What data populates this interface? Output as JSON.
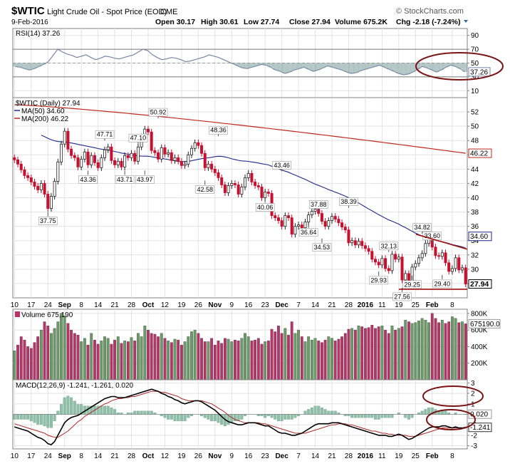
{
  "header": {
    "symbol": "$WTIC",
    "name": "Light Crude Oil - Spot Price (EOD)",
    "exchange": "CME",
    "date": "9-Feb-2016",
    "quote_labels": [
      "Open",
      "High",
      "Low",
      "Close",
      "Volume",
      "Chg"
    ],
    "quote_values": [
      "30.17",
      "30.61",
      "27.74",
      "27.94",
      "675.2K",
      "-2.18 (-7.24%)"
    ],
    "watermark": "© StockCharts.com"
  },
  "colors": {
    "up": "#5b8c5a",
    "down": "#c8102e",
    "ma50": "#1f2a8a",
    "ma200": "#c0281e",
    "rsi": "#7a86a8",
    "rsi_fill": "#7a9c9a",
    "volume_up": "#6a9a66",
    "volume_down": "#b8336a",
    "macd": "#000000",
    "signal": "#b0292a",
    "histogram": "#8fbfa8",
    "circle": "#7a1414"
  },
  "chart_data": [
    {
      "type": "line",
      "panel": "RSI",
      "legend": "RSI(14) 37.26",
      "last_value": "37.26",
      "ylim": [
        0,
        100
      ],
      "yticks": [
        10,
        30,
        50,
        70,
        90
      ],
      "levels": [
        30,
        70
      ],
      "values": [
        45,
        44,
        42,
        40,
        42,
        45,
        48,
        52,
        61,
        70,
        66,
        63,
        61,
        58,
        60,
        62,
        58,
        55,
        57,
        60,
        59,
        57,
        56,
        58,
        60,
        62,
        66,
        70,
        68,
        62,
        58,
        55,
        56,
        58,
        57,
        55,
        52,
        53,
        55,
        57,
        59,
        62,
        60,
        58,
        55,
        52,
        49,
        46,
        43,
        42,
        44,
        46,
        48,
        47,
        44,
        40,
        38,
        35,
        37,
        40,
        42,
        44,
        41,
        38,
        40,
        43,
        46,
        44,
        42,
        40,
        37,
        35,
        36,
        39,
        41,
        43,
        45,
        47,
        44,
        41,
        38,
        35,
        33,
        34,
        37,
        41,
        45,
        43,
        40,
        37,
        40,
        44,
        47,
        45,
        42,
        37.26
      ]
    },
    {
      "type": "candlestick",
      "panel": "Price",
      "legend": [
        "$WTIC (Daily) 27.94",
        "MA(50) 34.60",
        "MA(200) 46.22"
      ],
      "ylim": [
        26,
        54
      ],
      "yticks": [
        28,
        30,
        32,
        34,
        36,
        38,
        40,
        42,
        44,
        46,
        48,
        50,
        52
      ],
      "last_close": "27.94",
      "ma50_last": "34.60",
      "ma200_last": "46.22",
      "x_labels": [
        "10",
        "17",
        "24",
        "Sep",
        "8",
        "14",
        "21",
        "28",
        "Oct",
        "12",
        "19",
        "26",
        "Nov",
        "9",
        "16",
        "23",
        "Dec",
        "7",
        "14",
        "21",
        "28",
        "2016",
        "11",
        "19",
        "25",
        "Feb",
        "8"
      ],
      "close": [
        45.3,
        44.7,
        43.9,
        43.1,
        42.8,
        42.2,
        41.6,
        41.1,
        42.0,
        40.5,
        38.5,
        40.2,
        42.3,
        45.0,
        47.5,
        49.3,
        46.8,
        45.9,
        45.6,
        44.3,
        45.4,
        46.4,
        44.6,
        45.9,
        44.9,
        44.2,
        45.6,
        46.7,
        47.1,
        45.2,
        44.6,
        45.1,
        44.3,
        45.9,
        45.6,
        46.2,
        45.1,
        47.1,
        48.5,
        49.6,
        49.2,
        46.6,
        46.3,
        45.4,
        47.0,
        46.1,
        46.3,
        45.2,
        45.6,
        45.1,
        44.5,
        44.7,
        46.0,
        46.9,
        47.7,
        47.3,
        46.2,
        44.2,
        44.7,
        44.0,
        43.5,
        42.8,
        41.8,
        40.7,
        41.7,
        42.0,
        41.8,
        40.5,
        41.5,
        42.8,
        43.4,
        42.2,
        41.7,
        41.5,
        40.0,
        40.8,
        40.6,
        37.5,
        37.2,
        36.8,
        36.0,
        37.5,
        37.2,
        34.9,
        36.0,
        36.2,
        35.8,
        36.6,
        37.6,
        38.1,
        38.4,
        37.8,
        36.7,
        36.0,
        36.8,
        37.4,
        37.0,
        36.5,
        35.9,
        35.5,
        33.7,
        34.0,
        33.4,
        33.9,
        33.3,
        32.9,
        32.5,
        31.4,
        31.0,
        30.6,
        31.5,
        30.1,
        29.8,
        32.1,
        31.4,
        31.7,
        28.5,
        29.4,
        28.3,
        30.3,
        30.8,
        31.6,
        32.2,
        33.6,
        34.6,
        33.1,
        31.9,
        31.8,
        32.3,
        30.9,
        29.7,
        30.1,
        31.6,
        29.9,
        30.2,
        27.94
      ]
    },
    {
      "type": "bar",
      "panel": "Volume",
      "legend": "Volume 675,190",
      "last_value": "675190.0",
      "ylim": [
        0,
        850
      ],
      "yticks": [
        200,
        400,
        600,
        800
      ],
      "ytick_labels": [
        "200K",
        "400K",
        "600K",
        "800K"
      ],
      "values": [
        350,
        420,
        520,
        480,
        400,
        380,
        450,
        520,
        600,
        700,
        650,
        560,
        620,
        700,
        800,
        770,
        680,
        600,
        560,
        540,
        460,
        500,
        420,
        560,
        480,
        430,
        470,
        520,
        500,
        430,
        480,
        520,
        440,
        470,
        460,
        510,
        470,
        560,
        520,
        650,
        600,
        560,
        550,
        520,
        560,
        500,
        470,
        450,
        490,
        480,
        420,
        460,
        520,
        580,
        600,
        560,
        500,
        460,
        460,
        500,
        420,
        470,
        440,
        500,
        490,
        460,
        480,
        470,
        500,
        560,
        520,
        470,
        480,
        500,
        430,
        460,
        470,
        610,
        580,
        650,
        560,
        620,
        540,
        700,
        560,
        600,
        520,
        460,
        520,
        480,
        500,
        470,
        450,
        480,
        520,
        500,
        470,
        490,
        520,
        560,
        610,
        620,
        600,
        650,
        640,
        620,
        630,
        660,
        620,
        640,
        650,
        600,
        560,
        650,
        600,
        620,
        640,
        720,
        700,
        680,
        690,
        710,
        740,
        720,
        690,
        800,
        740,
        690,
        720,
        680,
        700,
        760,
        740,
        690,
        700,
        675
      ]
    },
    {
      "type": "line",
      "panel": "MACD",
      "legend": [
        "MACD(12,26,9) -1.241, -1.261, 0.020"
      ],
      "macd_last": "-1.241",
      "histogram_last": "0.020",
      "ylim": [
        -3.3,
        3.3
      ],
      "yticks": [
        -3,
        -2,
        -1,
        0,
        1,
        2,
        3
      ],
      "macd": [
        -1.2,
        -1.3,
        -1.4,
        -1.5,
        -1.6,
        -1.8,
        -2.0,
        -2.2,
        -2.3,
        -2.5,
        -2.8,
        -2.9,
        -2.6,
        -2.0,
        -1.4,
        -0.8,
        -0.5,
        -0.3,
        -0.2,
        -0.1,
        0.1,
        0.3,
        0.5,
        0.7,
        0.9,
        1.1,
        1.3,
        1.5,
        1.6,
        1.7,
        1.7,
        1.6,
        1.6,
        1.6,
        1.7,
        1.8,
        1.9,
        2.0,
        2.1,
        2.2,
        2.3,
        2.4,
        2.3,
        2.2,
        2.0,
        1.9,
        1.7,
        1.6,
        1.4,
        1.3,
        1.1,
        1.0,
        1.1,
        1.2,
        1.3,
        1.3,
        1.2,
        1.0,
        0.8,
        0.6,
        0.4,
        0.1,
        -0.2,
        -0.5,
        -0.7,
        -0.8,
        -0.9,
        -1.0,
        -1.0,
        -0.9,
        -0.8,
        -0.8,
        -0.8,
        -0.9,
        -1.0,
        -1.1,
        -1.1,
        -1.3,
        -1.5,
        -1.7,
        -1.8,
        -1.8,
        -1.9,
        -2.0,
        -2.0,
        -1.9,
        -1.8,
        -1.6,
        -1.4,
        -1.2,
        -1.0,
        -0.9,
        -0.9,
        -0.9,
        -0.9,
        -0.8,
        -0.8,
        -0.8,
        -0.9,
        -1.0,
        -1.1,
        -1.2,
        -1.3,
        -1.4,
        -1.5,
        -1.6,
        -1.7,
        -1.8,
        -1.9,
        -2.0,
        -2.0,
        -2.0,
        -2.1,
        -2.1,
        -2.0,
        -1.9,
        -2.0,
        -2.2,
        -2.4,
        -2.3,
        -2.1,
        -1.9,
        -1.7,
        -1.5,
        -1.3,
        -1.2,
        -1.2,
        -1.2,
        -1.1,
        -1.1,
        -1.2,
        -1.3,
        -1.2,
        -1.3,
        -1.3,
        -1.241
      ],
      "signal": [
        -0.9,
        -1.0,
        -1.1,
        -1.2,
        -1.3,
        -1.4,
        -1.5,
        -1.6,
        -1.7,
        -1.8,
        -2.0,
        -2.1,
        -2.2,
        -2.2,
        -2.0,
        -1.8,
        -1.6,
        -1.3,
        -1.0,
        -0.7,
        -0.5,
        -0.2,
        0.0,
        0.2,
        0.4,
        0.6,
        0.8,
        1.0,
        1.1,
        1.3,
        1.4,
        1.5,
        1.5,
        1.6,
        1.6,
        1.7,
        1.7,
        1.8,
        1.9,
        2.0,
        2.1,
        2.2,
        2.2,
        2.2,
        2.1,
        2.1,
        2.0,
        1.9,
        1.8,
        1.7,
        1.5,
        1.4,
        1.3,
        1.3,
        1.3,
        1.3,
        1.3,
        1.2,
        1.1,
        1.0,
        0.8,
        0.6,
        0.4,
        0.2,
        -0.1,
        -0.3,
        -0.5,
        -0.6,
        -0.7,
        -0.8,
        -0.8,
        -0.8,
        -0.8,
        -0.8,
        -0.9,
        -0.9,
        -1.0,
        -1.1,
        -1.2,
        -1.3,
        -1.4,
        -1.5,
        -1.6,
        -1.7,
        -1.8,
        -1.8,
        -1.8,
        -1.8,
        -1.7,
        -1.6,
        -1.5,
        -1.4,
        -1.3,
        -1.2,
        -1.1,
        -1.0,
        -1.0,
        -0.9,
        -0.9,
        -0.9,
        -1.0,
        -1.0,
        -1.1,
        -1.2,
        -1.3,
        -1.4,
        -1.5,
        -1.6,
        -1.6,
        -1.7,
        -1.8,
        -1.8,
        -1.9,
        -1.9,
        -2.0,
        -2.0,
        -2.0,
        -2.0,
        -2.1,
        -2.1,
        -2.1,
        -2.0,
        -1.9,
        -1.8,
        -1.7,
        -1.6,
        -1.5,
        -1.4,
        -1.3,
        -1.3,
        -1.3,
        -1.3,
        -1.3,
        -1.3,
        -1.3,
        -1.261
      ]
    }
  ],
  "annotations": {
    "price_labels": [
      {
        "text": "37.75",
        "i": 10,
        "v": 38.2,
        "pos": "below"
      },
      {
        "text": "43.36",
        "i": 22,
        "v": 44.0,
        "pos": "below"
      },
      {
        "text": "47.71",
        "i": 27,
        "v": 47.8,
        "pos": "above"
      },
      {
        "text": "43.71",
        "i": 33,
        "v": 44.0,
        "pos": "below"
      },
      {
        "text": "47.10",
        "i": 37,
        "v": 47.3,
        "pos": "above"
      },
      {
        "text": "43.97",
        "i": 39,
        "v": 44.0,
        "pos": "below"
      },
      {
        "text": "50.92",
        "i": 43,
        "v": 50.9,
        "pos": "above"
      },
      {
        "text": "42.58",
        "i": 57,
        "v": 42.6,
        "pos": "below"
      },
      {
        "text": "48.36",
        "i": 61,
        "v": 48.4,
        "pos": "above"
      },
      {
        "text": "40.06",
        "i": 75,
        "v": 40.1,
        "pos": "below"
      },
      {
        "text": "43.46",
        "i": 80,
        "v": 43.5,
        "pos": "above"
      },
      {
        "text": "36.64",
        "i": 88,
        "v": 36.6,
        "pos": "below"
      },
      {
        "text": "37.88",
        "i": 91,
        "v": 38.0,
        "pos": "above"
      },
      {
        "text": "34.53",
        "i": 92,
        "v": 34.5,
        "pos": "below"
      },
      {
        "text": "38.39",
        "i": 100,
        "v": 38.4,
        "pos": "above"
      },
      {
        "text": "32.13",
        "i": 112,
        "v": 32.2,
        "pos": "above"
      },
      {
        "text": "29.93",
        "i": 109,
        "v": 29.9,
        "pos": "below"
      },
      {
        "text": "27.56",
        "i": 116,
        "v": 27.6,
        "pos": "below"
      },
      {
        "text": "29.25",
        "i": 119,
        "v": 29.3,
        "pos": "below"
      },
      {
        "text": "34.82",
        "i": 122,
        "v": 34.8,
        "pos": "above"
      },
      {
        "text": "33.60",
        "i": 125,
        "v": 33.6,
        "pos": "above"
      },
      {
        "text": "29.40",
        "i": 128,
        "v": 29.4,
        "pos": "below"
      }
    ],
    "rsi_last_value": "37.26"
  }
}
